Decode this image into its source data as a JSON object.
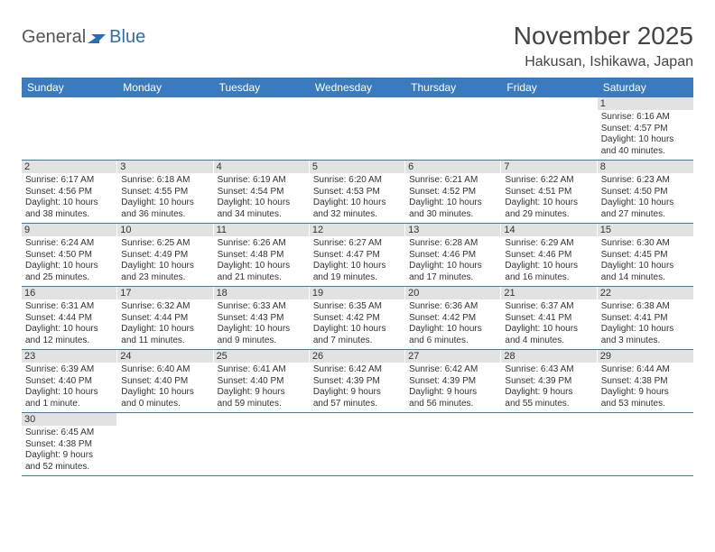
{
  "logo": {
    "general": "General",
    "blue": "Blue"
  },
  "title": "November 2025",
  "location": "Hakusan, Ishikawa, Japan",
  "colors": {
    "header_bg": "#3a7bc0",
    "header_text": "#ffffff",
    "daynum_bg": "#e2e2e2",
    "row_border": "#3a7bc0",
    "logo_blue": "#2a6db5"
  },
  "weekdays": [
    "Sunday",
    "Monday",
    "Tuesday",
    "Wednesday",
    "Thursday",
    "Friday",
    "Saturday"
  ],
  "weeks": [
    [
      null,
      null,
      null,
      null,
      null,
      null,
      {
        "n": "1",
        "sr": "Sunrise: 6:16 AM",
        "ss": "Sunset: 4:57 PM",
        "d1": "Daylight: 10 hours",
        "d2": "and 40 minutes."
      }
    ],
    [
      {
        "n": "2",
        "sr": "Sunrise: 6:17 AM",
        "ss": "Sunset: 4:56 PM",
        "d1": "Daylight: 10 hours",
        "d2": "and 38 minutes."
      },
      {
        "n": "3",
        "sr": "Sunrise: 6:18 AM",
        "ss": "Sunset: 4:55 PM",
        "d1": "Daylight: 10 hours",
        "d2": "and 36 minutes."
      },
      {
        "n": "4",
        "sr": "Sunrise: 6:19 AM",
        "ss": "Sunset: 4:54 PM",
        "d1": "Daylight: 10 hours",
        "d2": "and 34 minutes."
      },
      {
        "n": "5",
        "sr": "Sunrise: 6:20 AM",
        "ss": "Sunset: 4:53 PM",
        "d1": "Daylight: 10 hours",
        "d2": "and 32 minutes."
      },
      {
        "n": "6",
        "sr": "Sunrise: 6:21 AM",
        "ss": "Sunset: 4:52 PM",
        "d1": "Daylight: 10 hours",
        "d2": "and 30 minutes."
      },
      {
        "n": "7",
        "sr": "Sunrise: 6:22 AM",
        "ss": "Sunset: 4:51 PM",
        "d1": "Daylight: 10 hours",
        "d2": "and 29 minutes."
      },
      {
        "n": "8",
        "sr": "Sunrise: 6:23 AM",
        "ss": "Sunset: 4:50 PM",
        "d1": "Daylight: 10 hours",
        "d2": "and 27 minutes."
      }
    ],
    [
      {
        "n": "9",
        "sr": "Sunrise: 6:24 AM",
        "ss": "Sunset: 4:50 PM",
        "d1": "Daylight: 10 hours",
        "d2": "and 25 minutes."
      },
      {
        "n": "10",
        "sr": "Sunrise: 6:25 AM",
        "ss": "Sunset: 4:49 PM",
        "d1": "Daylight: 10 hours",
        "d2": "and 23 minutes."
      },
      {
        "n": "11",
        "sr": "Sunrise: 6:26 AM",
        "ss": "Sunset: 4:48 PM",
        "d1": "Daylight: 10 hours",
        "d2": "and 21 minutes."
      },
      {
        "n": "12",
        "sr": "Sunrise: 6:27 AM",
        "ss": "Sunset: 4:47 PM",
        "d1": "Daylight: 10 hours",
        "d2": "and 19 minutes."
      },
      {
        "n": "13",
        "sr": "Sunrise: 6:28 AM",
        "ss": "Sunset: 4:46 PM",
        "d1": "Daylight: 10 hours",
        "d2": "and 17 minutes."
      },
      {
        "n": "14",
        "sr": "Sunrise: 6:29 AM",
        "ss": "Sunset: 4:46 PM",
        "d1": "Daylight: 10 hours",
        "d2": "and 16 minutes."
      },
      {
        "n": "15",
        "sr": "Sunrise: 6:30 AM",
        "ss": "Sunset: 4:45 PM",
        "d1": "Daylight: 10 hours",
        "d2": "and 14 minutes."
      }
    ],
    [
      {
        "n": "16",
        "sr": "Sunrise: 6:31 AM",
        "ss": "Sunset: 4:44 PM",
        "d1": "Daylight: 10 hours",
        "d2": "and 12 minutes."
      },
      {
        "n": "17",
        "sr": "Sunrise: 6:32 AM",
        "ss": "Sunset: 4:44 PM",
        "d1": "Daylight: 10 hours",
        "d2": "and 11 minutes."
      },
      {
        "n": "18",
        "sr": "Sunrise: 6:33 AM",
        "ss": "Sunset: 4:43 PM",
        "d1": "Daylight: 10 hours",
        "d2": "and 9 minutes."
      },
      {
        "n": "19",
        "sr": "Sunrise: 6:35 AM",
        "ss": "Sunset: 4:42 PM",
        "d1": "Daylight: 10 hours",
        "d2": "and 7 minutes."
      },
      {
        "n": "20",
        "sr": "Sunrise: 6:36 AM",
        "ss": "Sunset: 4:42 PM",
        "d1": "Daylight: 10 hours",
        "d2": "and 6 minutes."
      },
      {
        "n": "21",
        "sr": "Sunrise: 6:37 AM",
        "ss": "Sunset: 4:41 PM",
        "d1": "Daylight: 10 hours",
        "d2": "and 4 minutes."
      },
      {
        "n": "22",
        "sr": "Sunrise: 6:38 AM",
        "ss": "Sunset: 4:41 PM",
        "d1": "Daylight: 10 hours",
        "d2": "and 3 minutes."
      }
    ],
    [
      {
        "n": "23",
        "sr": "Sunrise: 6:39 AM",
        "ss": "Sunset: 4:40 PM",
        "d1": "Daylight: 10 hours",
        "d2": "and 1 minute."
      },
      {
        "n": "24",
        "sr": "Sunrise: 6:40 AM",
        "ss": "Sunset: 4:40 PM",
        "d1": "Daylight: 10 hours",
        "d2": "and 0 minutes."
      },
      {
        "n": "25",
        "sr": "Sunrise: 6:41 AM",
        "ss": "Sunset: 4:40 PM",
        "d1": "Daylight: 9 hours",
        "d2": "and 59 minutes."
      },
      {
        "n": "26",
        "sr": "Sunrise: 6:42 AM",
        "ss": "Sunset: 4:39 PM",
        "d1": "Daylight: 9 hours",
        "d2": "and 57 minutes."
      },
      {
        "n": "27",
        "sr": "Sunrise: 6:42 AM",
        "ss": "Sunset: 4:39 PM",
        "d1": "Daylight: 9 hours",
        "d2": "and 56 minutes."
      },
      {
        "n": "28",
        "sr": "Sunrise: 6:43 AM",
        "ss": "Sunset: 4:39 PM",
        "d1": "Daylight: 9 hours",
        "d2": "and 55 minutes."
      },
      {
        "n": "29",
        "sr": "Sunrise: 6:44 AM",
        "ss": "Sunset: 4:38 PM",
        "d1": "Daylight: 9 hours",
        "d2": "and 53 minutes."
      }
    ],
    [
      {
        "n": "30",
        "sr": "Sunrise: 6:45 AM",
        "ss": "Sunset: 4:38 PM",
        "d1": "Daylight: 9 hours",
        "d2": "and 52 minutes."
      },
      null,
      null,
      null,
      null,
      null,
      null
    ]
  ]
}
